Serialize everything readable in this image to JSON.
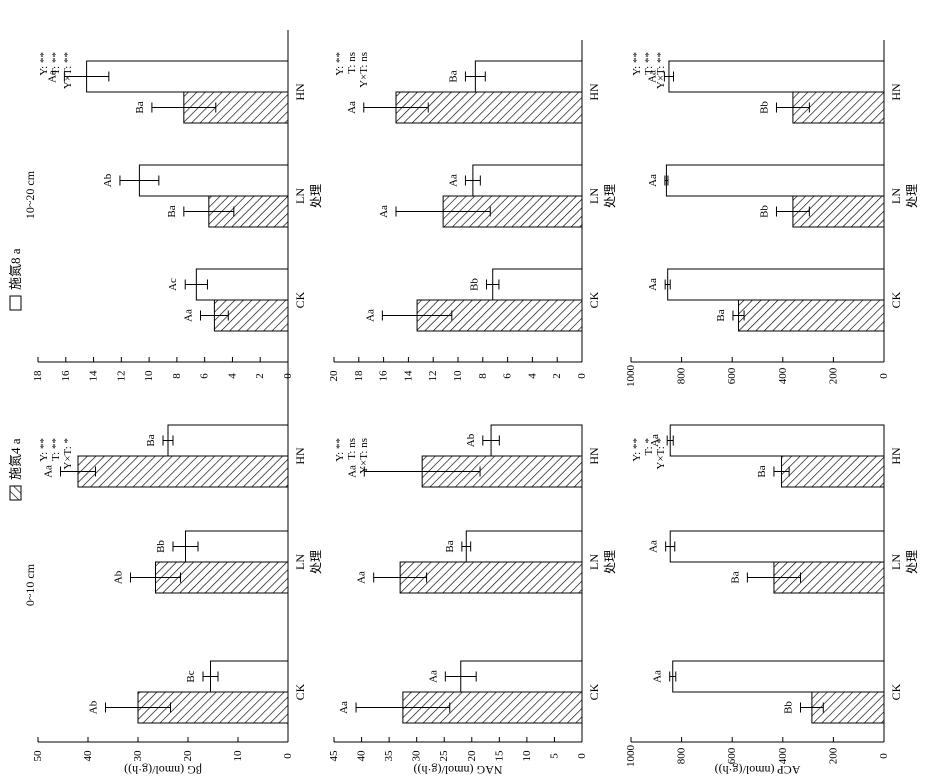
{
  "legend": {
    "n4_label": "施氮4 a",
    "n8_label": "施氮8 a"
  },
  "depths": [
    "0~10 cm",
    "10~20 cm"
  ],
  "treatment_axis_label": "处理",
  "chart_data": [
    {
      "type": "bar",
      "depth": "0~10 cm",
      "ylabel": "βG (nmol/(g·h))",
      "ylim": [
        0,
        50
      ],
      "yticks": [
        0,
        10,
        20,
        30,
        40,
        50
      ],
      "categories": [
        "CK",
        "LN",
        "HN"
      ],
      "series": [
        {
          "name": "施氮4 a",
          "values": [
            30.0,
            26.5,
            42.0
          ],
          "err": [
            6.5,
            5.0,
            3.5
          ],
          "letters": [
            "Ab",
            "Ab",
            "Aa"
          ]
        },
        {
          "name": "施氮8 a",
          "values": [
            15.5,
            20.5,
            24.0
          ],
          "err": [
            1.5,
            2.5,
            1.0
          ],
          "letters": [
            "Bc",
            "Bb",
            "Ba"
          ]
        }
      ],
      "stats": [
        "Y: **",
        "T: **",
        "Y×T: *"
      ]
    },
    {
      "type": "bar",
      "depth": "10~20 cm",
      "ylabel": "",
      "ylim": [
        0,
        18
      ],
      "yticks": [
        0,
        2,
        4,
        6,
        8,
        10,
        12,
        14,
        16,
        18
      ],
      "categories": [
        "CK",
        "LN",
        "HN"
      ],
      "series": [
        {
          "name": "施氮4 a",
          "values": [
            5.3,
            5.7,
            7.5
          ],
          "err": [
            1.0,
            1.8,
            2.3
          ],
          "letters": [
            "Aa",
            "Ba",
            "Ba"
          ]
        },
        {
          "name": "施氮8 a",
          "values": [
            6.6,
            10.7,
            14.5
          ],
          "err": [
            0.8,
            1.4,
            1.6
          ],
          "letters": [
            "Ac",
            "Ab",
            "Aa"
          ]
        }
      ],
      "stats": [
        "Y: **",
        "T: **",
        "Y×T: **"
      ]
    },
    {
      "type": "bar",
      "depth": "0~10 cm",
      "ylabel": "NAG (nmol/(g·h))",
      "ylim": [
        0,
        45
      ],
      "yticks": [
        0,
        5,
        10,
        15,
        20,
        25,
        30,
        35,
        40,
        45
      ],
      "categories": [
        "CK",
        "LN",
        "HN"
      ],
      "series": [
        {
          "name": "施氮4 a",
          "values": [
            32.5,
            33.0,
            29.0
          ],
          "err": [
            8.5,
            4.8,
            10.5
          ],
          "letters": [
            "Aa",
            "Aa",
            "Aa"
          ]
        },
        {
          "name": "施氮8 a",
          "values": [
            22.0,
            21.0,
            16.5
          ],
          "err": [
            2.8,
            0.8,
            1.5
          ],
          "letters": [
            "Aa",
            "Ba",
            "Ab"
          ]
        }
      ],
      "stats": [
        "Y: **",
        "T: ns",
        "Y×T: ns"
      ]
    },
    {
      "type": "bar",
      "depth": "10~20 cm",
      "ylabel": "",
      "ylim": [
        0,
        20
      ],
      "yticks": [
        0,
        2,
        4,
        6,
        8,
        10,
        12,
        14,
        16,
        18,
        20
      ],
      "categories": [
        "CK",
        "LN",
        "HN"
      ],
      "series": [
        {
          "name": "施氮4 a",
          "values": [
            13.3,
            11.2,
            15.0
          ],
          "err": [
            2.8,
            3.8,
            2.6
          ],
          "letters": [
            "Aa",
            "Aa",
            "Aa"
          ]
        },
        {
          "name": "施氮8 a",
          "values": [
            7.2,
            8.8,
            8.6
          ],
          "err": [
            0.5,
            0.6,
            0.8
          ],
          "letters": [
            "Bb",
            "Aa",
            "Ba"
          ]
        }
      ],
      "stats": [
        "Y: **",
        "T: ns",
        "Y×T: ns"
      ]
    },
    {
      "type": "bar",
      "depth": "0~10 cm",
      "ylabel": "ACP (nmol/(g·h))",
      "ylim": [
        0,
        1000
      ],
      "yticks": [
        0,
        200,
        400,
        600,
        800,
        1000
      ],
      "categories": [
        "CK",
        "LN",
        "HN"
      ],
      "series": [
        {
          "name": "施氮4 a",
          "values": [
            285,
            435,
            405
          ],
          "err": [
            45,
            105,
            30
          ],
          "letters": [
            "Bb",
            "Ba",
            "Ba"
          ]
        },
        {
          "name": "施氮8 a",
          "values": [
            835,
            845,
            845
          ],
          "err": [
            12,
            18,
            12
          ],
          "letters": [
            "Aa",
            "Aa",
            "Aa"
          ]
        }
      ],
      "stats": [
        "Y: **",
        "T: *",
        "Y×T: *"
      ]
    },
    {
      "type": "bar",
      "depth": "10~20 cm",
      "ylabel": "",
      "ylim": [
        0,
        1000
      ],
      "yticks": [
        0,
        200,
        400,
        600,
        800,
        1000
      ],
      "categories": [
        "CK",
        "LN",
        "HN"
      ],
      "series": [
        {
          "name": "施氮4 a",
          "values": [
            575,
            360,
            360
          ],
          "err": [
            22,
            65,
            65
          ],
          "letters": [
            "Ba",
            "Bb",
            "Bb"
          ]
        },
        {
          "name": "施氮8 a",
          "values": [
            855,
            860,
            850
          ],
          "err": [
            10,
            6,
            18
          ],
          "letters": [
            "Aa",
            "Aa",
            "Aa"
          ]
        }
      ],
      "stats": [
        "Y: **",
        "T: **",
        "Y×T: **"
      ]
    }
  ]
}
